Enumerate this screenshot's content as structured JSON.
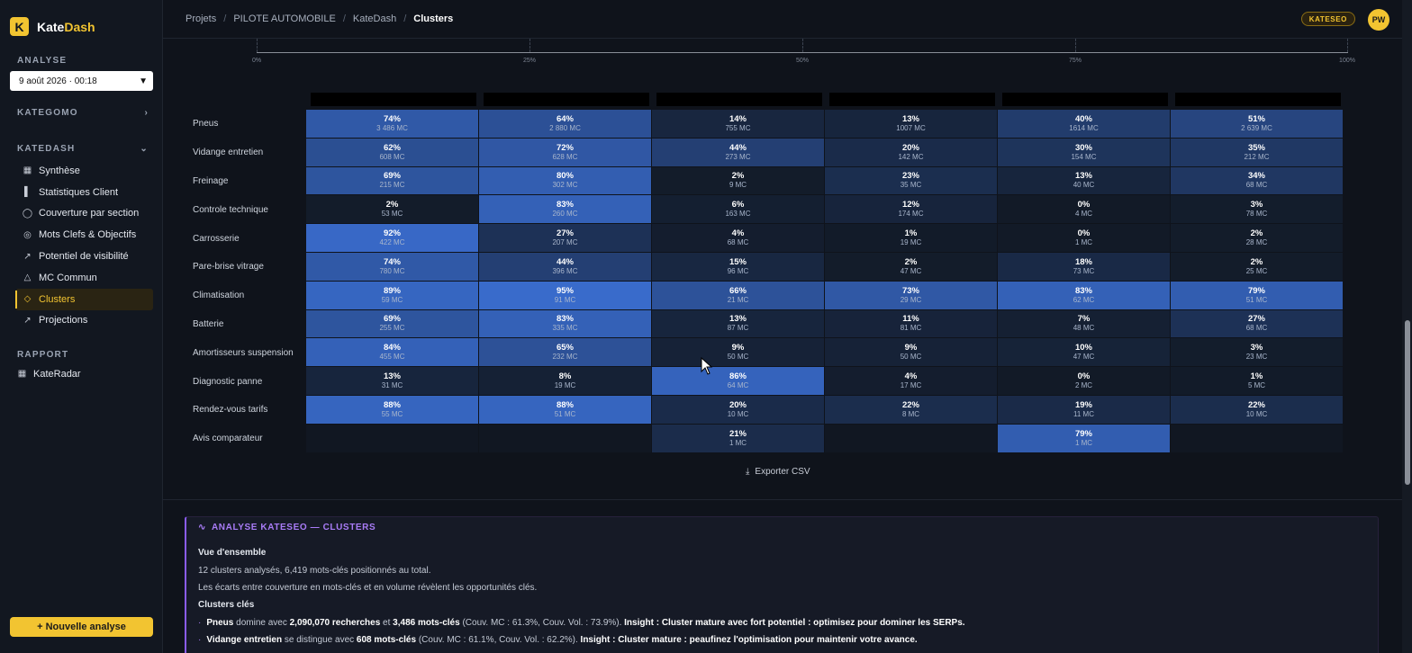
{
  "app": {
    "name_part1": "Kate",
    "name_part2": "Dash",
    "logo_letter": "K"
  },
  "sidebar": {
    "analyse_label": "ANALYSE",
    "date_value": "9 août 2026 · 00:18",
    "kategomo_label": "KATEGOMO",
    "katedash_label": "KATEDASH",
    "items": [
      {
        "label": "Synthèse",
        "icon": "grid-icon"
      },
      {
        "label": "Statistiques Client",
        "icon": "bar-chart-icon"
      },
      {
        "label": "Couverture par section",
        "icon": "globe-icon"
      },
      {
        "label": "Mots Clefs & Objectifs",
        "icon": "target-icon"
      },
      {
        "label": "Potentiel de visibilité",
        "icon": "trend-icon"
      },
      {
        "label": "MC Commun",
        "icon": "nodes-icon"
      },
      {
        "label": "Clusters",
        "icon": "tag-icon",
        "active": true
      },
      {
        "label": "Projections",
        "icon": "trend-icon"
      }
    ],
    "rapport_label": "RAPPORT",
    "rapport_items": [
      {
        "label": "KateRadar",
        "icon": "grid-icon"
      }
    ],
    "new_analysis": "+ Nouvelle analyse"
  },
  "topbar": {
    "breadcrumb": [
      "Projets",
      "PILOTE AUTOMOBILE",
      "KateDash",
      "Clusters"
    ],
    "badge": "KATESEO",
    "avatar": "PW"
  },
  "axis": {
    "ticks": [
      "0%",
      "25%",
      "50%",
      "75%",
      "100%"
    ]
  },
  "heatmap": {
    "rows": [
      {
        "label": "Pneus",
        "cells": [
          [
            "74%",
            "3 486 MC"
          ],
          [
            "64%",
            "2 880 MC"
          ],
          [
            "14%",
            "755 MC"
          ],
          [
            "13%",
            "1007 MC"
          ],
          [
            "40%",
            "1614 MC"
          ],
          [
            "51%",
            "2 639 MC"
          ]
        ]
      },
      {
        "label": "Vidange entretien",
        "cells": [
          [
            "62%",
            "608 MC"
          ],
          [
            "72%",
            "628 MC"
          ],
          [
            "44%",
            "273 MC"
          ],
          [
            "20%",
            "142 MC"
          ],
          [
            "30%",
            "154 MC"
          ],
          [
            "35%",
            "212 MC"
          ]
        ]
      },
      {
        "label": "Freinage",
        "cells": [
          [
            "69%",
            "215 MC"
          ],
          [
            "80%",
            "302 MC"
          ],
          [
            "2%",
            "9 MC"
          ],
          [
            "23%",
            "35 MC"
          ],
          [
            "13%",
            "40 MC"
          ],
          [
            "34%",
            "68 MC"
          ]
        ]
      },
      {
        "label": "Controle technique",
        "cells": [
          [
            "2%",
            "53 MC"
          ],
          [
            "83%",
            "260 MC"
          ],
          [
            "6%",
            "163 MC"
          ],
          [
            "12%",
            "174 MC"
          ],
          [
            "0%",
            "4 MC"
          ],
          [
            "3%",
            "78 MC"
          ]
        ]
      },
      {
        "label": "Carrosserie",
        "cells": [
          [
            "92%",
            "422 MC"
          ],
          [
            "27%",
            "207 MC"
          ],
          [
            "4%",
            "68 MC"
          ],
          [
            "1%",
            "19 MC"
          ],
          [
            "0%",
            "1 MC"
          ],
          [
            "2%",
            "28 MC"
          ]
        ]
      },
      {
        "label": "Pare-brise vitrage",
        "cells": [
          [
            "74%",
            "780 MC"
          ],
          [
            "44%",
            "396 MC"
          ],
          [
            "15%",
            "96 MC"
          ],
          [
            "2%",
            "47 MC"
          ],
          [
            "18%",
            "73 MC"
          ],
          [
            "2%",
            "25 MC"
          ]
        ]
      },
      {
        "label": "Climatisation",
        "cells": [
          [
            "89%",
            "59 MC"
          ],
          [
            "95%",
            "91 MC"
          ],
          [
            "66%",
            "21 MC"
          ],
          [
            "73%",
            "29 MC"
          ],
          [
            "83%",
            "62 MC"
          ],
          [
            "79%",
            "51 MC"
          ]
        ]
      },
      {
        "label": "Batterie",
        "cells": [
          [
            "69%",
            "255 MC"
          ],
          [
            "83%",
            "335 MC"
          ],
          [
            "13%",
            "87 MC"
          ],
          [
            "11%",
            "81 MC"
          ],
          [
            "7%",
            "48 MC"
          ],
          [
            "27%",
            "68 MC"
          ]
        ]
      },
      {
        "label": "Amortisseurs suspension",
        "cells": [
          [
            "84%",
            "455 MC"
          ],
          [
            "65%",
            "232 MC"
          ],
          [
            "9%",
            "50 MC"
          ],
          [
            "9%",
            "50 MC"
          ],
          [
            "10%",
            "47 MC"
          ],
          [
            "3%",
            "23 MC"
          ]
        ]
      },
      {
        "label": "Diagnostic panne",
        "cells": [
          [
            "13%",
            "31 MC"
          ],
          [
            "8%",
            "19 MC"
          ],
          [
            "86%",
            "64 MC"
          ],
          [
            "4%",
            "17 MC"
          ],
          [
            "0%",
            "2 MC"
          ],
          [
            "1%",
            "5 MC"
          ]
        ]
      },
      {
        "label": "Rendez-vous tarifs",
        "cells": [
          [
            "88%",
            "55 MC"
          ],
          [
            "88%",
            "51 MC"
          ],
          [
            "20%",
            "10 MC"
          ],
          [
            "22%",
            "8 MC"
          ],
          [
            "19%",
            "11 MC"
          ],
          [
            "22%",
            "10 MC"
          ]
        ]
      },
      {
        "label": "Avis comparateur",
        "cells": [
          null,
          null,
          [
            "21%",
            "1 MC"
          ],
          null,
          [
            "79%",
            "1 MC"
          ],
          null
        ]
      }
    ],
    "colors": {
      "low": "#121a27",
      "high": "#3b6fd4"
    }
  },
  "export_label": "Exporter CSV",
  "analysis": {
    "title": "ANALYSE KATESEO — CLUSTERS",
    "overview_head": "Vue d'ensemble",
    "overview_1": "12 clusters analysés, 6,419 mots-clés positionnés au total.",
    "overview_2": "Les écarts entre couverture en mots-clés et en volume révèlent les opportunités clés.",
    "clusters_head": "Clusters clés",
    "b1": {
      "name": "Pneus",
      "t1": " domine avec ",
      "v1": "2,090,070 recherches",
      "t2": " et ",
      "v2": "3,486 mots-clés",
      "t3": " (Couv. MC : 61.3%, Couv. Vol. : 73.9%). ",
      "insight": "Insight : Cluster mature avec fort potentiel : optimisez pour dominer les SERPs."
    },
    "b2": {
      "name": "Vidange entretien",
      "t1": " se distingue avec ",
      "v1": "608 mots-clés",
      "t2": " (Couv. MC : 61.1%, Couv. Vol. : 62.2%). ",
      "insight": "Insight : Cluster mature : peaufinez l'optimisation pour maintenir votre avance."
    }
  }
}
